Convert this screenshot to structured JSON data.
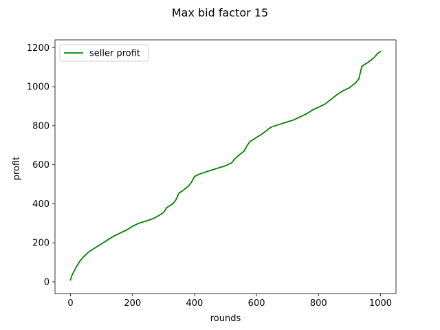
{
  "chart_data": {
    "type": "line",
    "title": "Max bid factor 15",
    "xlabel": "rounds",
    "ylabel": "profit",
    "xlim": [
      -50,
      1050
    ],
    "ylim": [
      -60,
      1240
    ],
    "xticks": [
      0,
      200,
      400,
      600,
      800,
      1000
    ],
    "yticks": [
      0,
      200,
      400,
      600,
      800,
      1000,
      1200
    ],
    "grid": false,
    "legend_position": "top-left",
    "series": [
      {
        "name": "seller profit",
        "color": "#008000",
        "x": [
          0,
          5,
          10,
          20,
          30,
          40,
          50,
          60,
          80,
          100,
          120,
          140,
          160,
          180,
          200,
          220,
          240,
          260,
          280,
          300,
          310,
          330,
          340,
          350,
          360,
          380,
          390,
          400,
          420,
          440,
          460,
          480,
          500,
          520,
          530,
          540,
          560,
          570,
          580,
          600,
          620,
          640,
          650,
          680,
          700,
          720,
          740,
          760,
          780,
          800,
          820,
          840,
          860,
          880,
          900,
          920,
          930,
          940,
          960,
          980,
          990,
          1000
        ],
        "y": [
          10,
          35,
          50,
          80,
          105,
          125,
          140,
          155,
          175,
          195,
          215,
          235,
          250,
          265,
          285,
          300,
          310,
          320,
          335,
          355,
          380,
          400,
          420,
          455,
          465,
          490,
          510,
          540,
          555,
          565,
          575,
          585,
          595,
          610,
          630,
          645,
          670,
          700,
          720,
          740,
          760,
          785,
          795,
          810,
          820,
          830,
          845,
          860,
          880,
          895,
          910,
          935,
          960,
          980,
          995,
          1020,
          1040,
          1105,
          1125,
          1150,
          1170,
          1180
        ]
      }
    ]
  }
}
